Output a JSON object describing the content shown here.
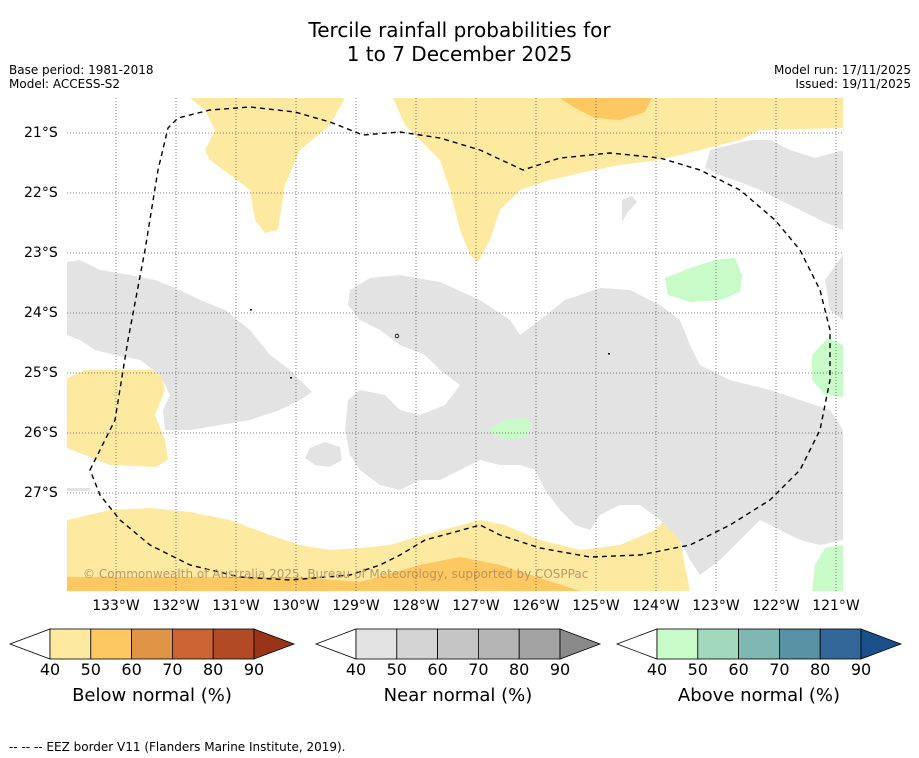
{
  "title_line1": "Tercile rainfall probabilities for",
  "title_line2": "1 to 7 December 2025",
  "base_period": "Base period: 1981-2018",
  "model": "Model: ACCESS-S2",
  "model_run": "Model run: 17/11/2025",
  "issued": "Issued: 19/11/2025",
  "copyright": "© Commonwealth of Australia 2025, Bureau of Meteorology, supported by COSPPac",
  "lat_labels": [
    "21°S",
    "22°S",
    "23°S",
    "24°S",
    "25°S",
    "26°S",
    "27°S"
  ],
  "lon_labels": [
    "133°W",
    "132°W",
    "131°W",
    "130°W",
    "129°W",
    "128°W",
    "127°W",
    "126°W",
    "125°W",
    "124°W",
    "123°W",
    "122°W",
    "121°W"
  ],
  "colorbars": [
    {
      "label": "Below normal (%)",
      "ticks": [
        "40",
        "50",
        "60",
        "70",
        "80",
        "90"
      ],
      "colors": [
        "#fee9a1",
        "#fdc862",
        "#e09445",
        "#cc6333",
        "#b24b25",
        "#9a3418"
      ]
    },
    {
      "label": "Near normal (%)",
      "ticks": [
        "40",
        "50",
        "60",
        "70",
        "80",
        "90"
      ],
      "colors": [
        "#e3e3e3",
        "#d4d4d4",
        "#c5c5c5",
        "#b5b5b5",
        "#a3a3a3",
        "#8a8a8a"
      ]
    },
    {
      "label": "Above normal (%)",
      "ticks": [
        "40",
        "50",
        "60",
        "70",
        "80",
        "90"
      ],
      "colors": [
        "#c8fbc8",
        "#a2d9bd",
        "#7fb7b2",
        "#5991a4",
        "#336699",
        "#1a4f8a"
      ]
    }
  ],
  "footer": "--  --  -- EEZ border V11 (Flanders Marine Institute, 2019)."
}
